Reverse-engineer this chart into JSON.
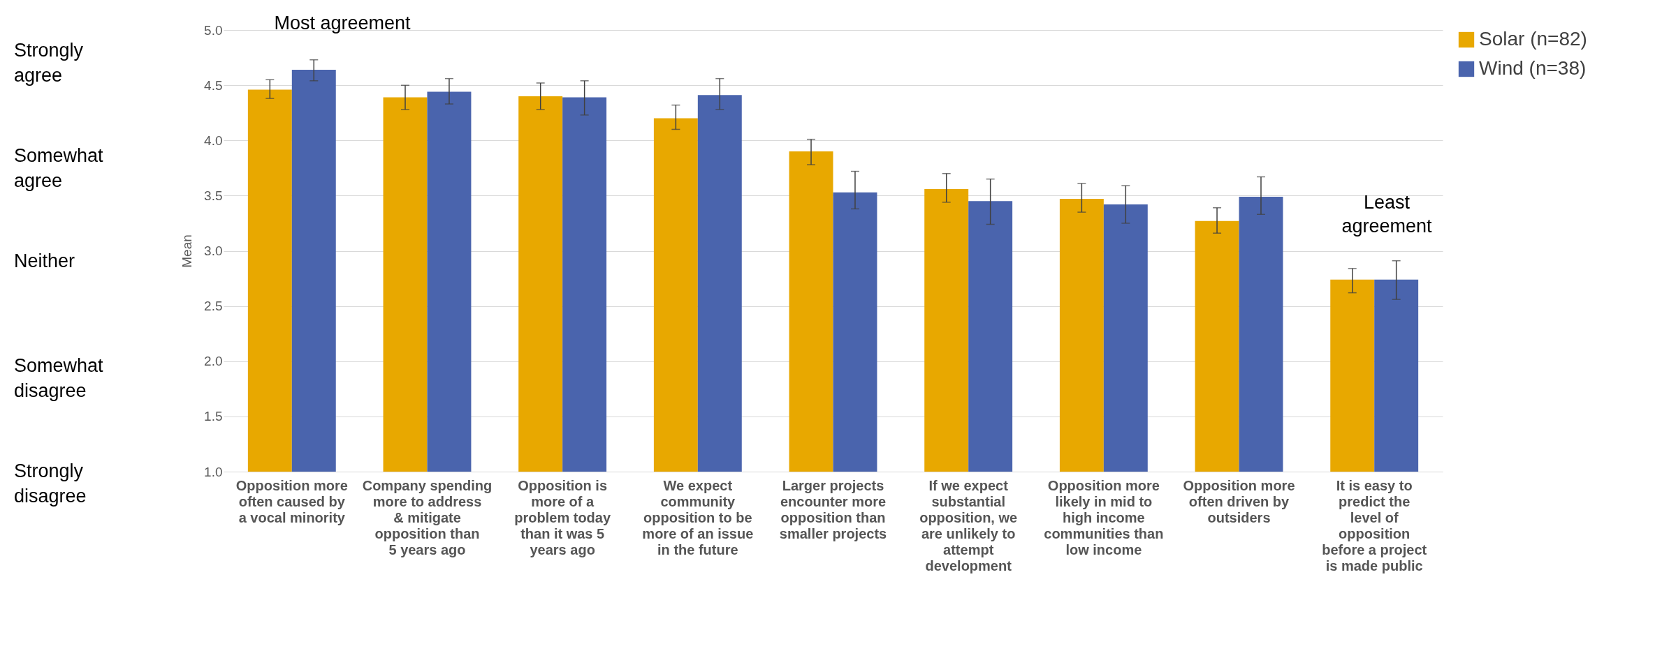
{
  "chart_data": {
    "type": "bar",
    "ylabel": "Mean",
    "categories": [
      "Opposition more often caused by a vocal minority",
      "Company spending more to address & mitigate opposition than 5 years ago",
      "Opposition is more of a problem today than it was 5 years ago",
      "We expect community opposition to be more of an issue in the future",
      "Larger projects encounter more opposition than smaller projects",
      "If we expect substantial opposition, we are unlikely to attempt development",
      "Opposition more likely in mid to high income communities than low income",
      "Opposition more often driven by outsiders",
      "It is easy to predict the level of opposition before a project is made public"
    ],
    "series": [
      {
        "name": "Solar (n=82)",
        "color": "#e8a800",
        "values": [
          4.46,
          4.39,
          4.4,
          4.2,
          3.9,
          3.56,
          3.47,
          3.27,
          2.74
        ],
        "errors": [
          [
            4.38,
            4.55
          ],
          [
            4.28,
            4.5
          ],
          [
            4.28,
            4.52
          ],
          [
            4.1,
            4.32
          ],
          [
            3.78,
            4.01
          ],
          [
            3.44,
            3.7
          ],
          [
            3.35,
            3.61
          ],
          [
            3.16,
            3.39
          ],
          [
            2.62,
            2.84
          ]
        ]
      },
      {
        "name": "Wind (n=38)",
        "color": "#4a64ad",
        "values": [
          4.64,
          4.44,
          4.39,
          4.41,
          3.53,
          3.45,
          3.42,
          3.49,
          2.74
        ],
        "errors": [
          [
            4.54,
            4.73
          ],
          [
            4.33,
            4.56
          ],
          [
            4.23,
            4.54
          ],
          [
            4.28,
            4.56
          ],
          [
            3.38,
            3.72
          ],
          [
            3.24,
            3.65
          ],
          [
            3.25,
            3.59
          ],
          [
            3.33,
            3.67
          ],
          [
            2.56,
            2.91
          ]
        ]
      }
    ],
    "ylim": [
      1,
      5
    ],
    "yticks": [
      {
        "value": 1,
        "label": "1.0"
      },
      {
        "value": 1.5,
        "label": "1.5"
      },
      {
        "value": 2,
        "label": "2.0"
      },
      {
        "value": 2.5,
        "label": "2.5"
      },
      {
        "value": 3,
        "label": "3.0"
      },
      {
        "value": 3.5,
        "label": "3.5"
      },
      {
        "value": 4,
        "label": "4.0"
      },
      {
        "value": 4.5,
        "label": "4.5"
      },
      {
        "value": 5,
        "label": "5.0"
      }
    ],
    "grid": "y",
    "legend": "right",
    "annotations": [
      "Strongly agree",
      "Somewhat agree",
      "Neither",
      "Somewhat disagree",
      "Strongly disagree",
      "Most agreement",
      "Least agreement"
    ]
  }
}
